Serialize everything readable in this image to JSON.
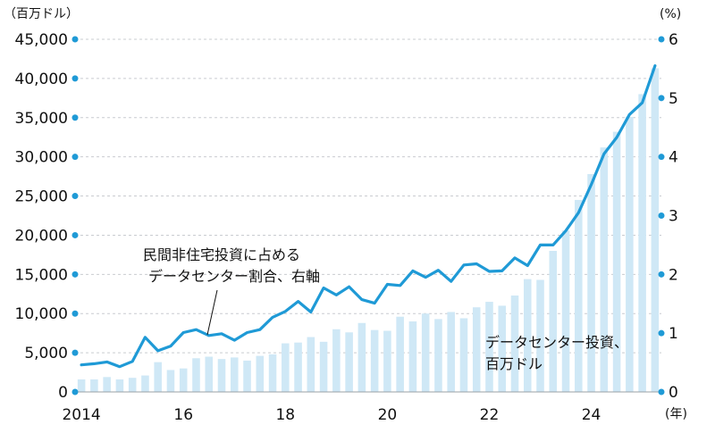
{
  "chart_data": {
    "type": "bar+line",
    "left_axis": {
      "unit": "（百万ドル）",
      "ticks": [
        0,
        5000,
        10000,
        15000,
        20000,
        25000,
        30000,
        35000,
        40000,
        45000
      ],
      "tick_labels": [
        "0",
        "5,000",
        "10,000",
        "15,000",
        "20,000",
        "25,000",
        "30,000",
        "35,000",
        "40,000",
        "45,000"
      ],
      "range": [
        0,
        45000
      ]
    },
    "right_axis": {
      "unit": "(%)",
      "ticks": [
        0,
        1,
        2,
        3,
        4,
        5,
        6
      ],
      "tick_labels": [
        "0",
        "1",
        "2",
        "3",
        "4",
        "5",
        "6"
      ],
      "range": [
        0,
        6
      ]
    },
    "x_axis": {
      "unit": "(年)",
      "ticks": [
        {
          "label": "2014",
          "index": 0
        },
        {
          "label": "16",
          "index": 8
        },
        {
          "label": "18",
          "index": 16
        },
        {
          "label": "20",
          "index": 24
        },
        {
          "label": "22",
          "index": 32
        },
        {
          "label": "24",
          "index": 40
        }
      ],
      "period_count": 46,
      "frequency": "quarterly"
    },
    "bar_series": {
      "name": "データセンター投資、百万ドル",
      "axis": "left",
      "color": "#cfe8f6",
      "values": [
        1600,
        1600,
        1900,
        1600,
        1800,
        2100,
        3800,
        2800,
        3000,
        4300,
        4500,
        4200,
        4400,
        4000,
        4600,
        4800,
        6200,
        6300,
        7000,
        6400,
        8000,
        7600,
        8800,
        7900,
        7800,
        9600,
        9000,
        10000,
        9300,
        10200,
        9400,
        10800,
        11500,
        11000,
        12300,
        14400,
        14300,
        18000,
        20600,
        24500,
        27800,
        31200,
        33200,
        35100,
        38000,
        41300
      ]
    },
    "line_series": {
      "name": "民間非住宅投資に占める データセンター割合、右軸",
      "axis": "right",
      "color": "#1f9ad6",
      "values": [
        0.46,
        0.48,
        0.51,
        0.43,
        0.52,
        0.93,
        0.7,
        0.78,
        1.01,
        1.06,
        0.96,
        0.99,
        0.88,
        1.01,
        1.06,
        1.27,
        1.37,
        1.54,
        1.36,
        1.77,
        1.65,
        1.79,
        1.57,
        1.51,
        1.83,
        1.81,
        2.06,
        1.95,
        2.07,
        1.88,
        2.16,
        2.18,
        2.05,
        2.06,
        2.28,
        2.15,
        2.5,
        2.5,
        2.74,
        3.05,
        3.53,
        4.05,
        4.33,
        4.72,
        4.92,
        5.55
      ]
    },
    "annotations": {
      "line_label_line1": "民間非住宅投資に占める",
      "line_label_line2": "データセンター割合、右軸",
      "bar_label_line1": "データセンター投資、",
      "bar_label_line2": "百万ドル"
    },
    "grid": true,
    "legend": "none"
  }
}
